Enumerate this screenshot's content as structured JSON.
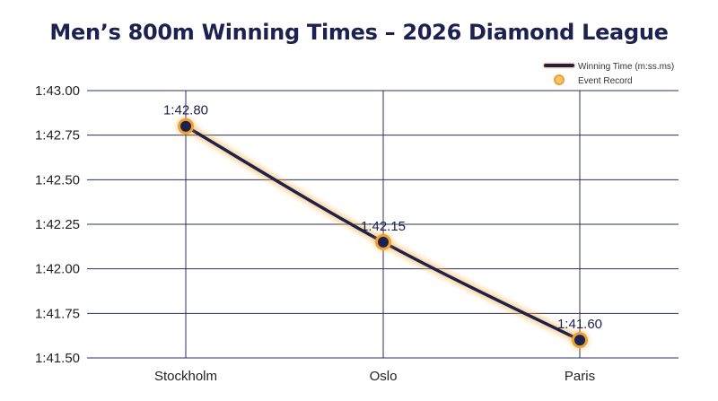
{
  "chart_data": {
    "type": "line",
    "title": "Men’s 800m Winning Times – 2026 Diamond League",
    "categories": [
      "Stockholm",
      "Oslo",
      "Paris"
    ],
    "series": [
      {
        "name": "Winning Time (m:ss.ms)",
        "values_seconds": [
          102.8,
          102.15,
          101.6
        ],
        "data_labels": [
          "1:42.80",
          "1:42.15",
          "1:41.60"
        ]
      }
    ],
    "event_record_marker": "Event Record",
    "xlabel": "",
    "ylabel": "",
    "ylim_seconds": [
      101.5,
      103.0
    ],
    "y_ticks_seconds": [
      101.5,
      101.75,
      102.0,
      102.25,
      102.5,
      102.75,
      103.0
    ],
    "y_tick_labels": [
      "1:41.50",
      "1:41.75",
      "1:42.00",
      "1:42.25",
      "1:42.50",
      "1:42.75",
      "1:43.00"
    ],
    "grid": true,
    "legend_position": "top-right",
    "colors": {
      "line": "#1c2150",
      "glow": "#f5b041",
      "marker_fill": "#1c2150",
      "marker_edge": "#f0a030",
      "grid": "#2a3060",
      "title": "#1c2150"
    }
  }
}
